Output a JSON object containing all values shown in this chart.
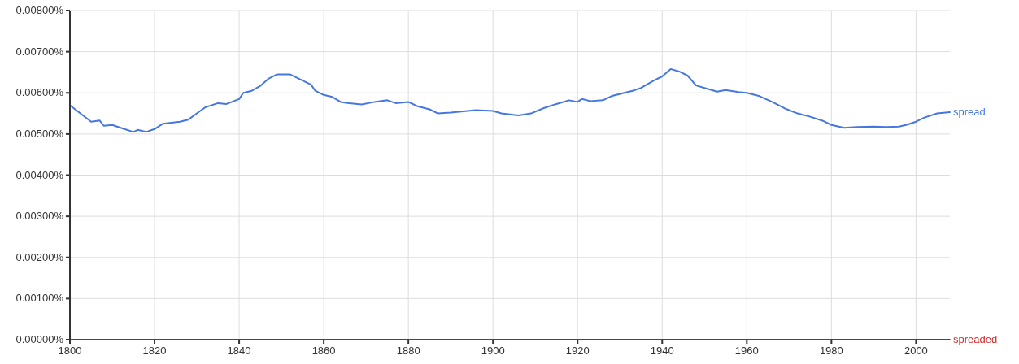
{
  "chart_data": {
    "type": "line",
    "xlim": [
      1800,
      2008
    ],
    "xticks": [
      1800,
      1820,
      1840,
      1860,
      1880,
      1900,
      1920,
      1940,
      1960,
      1980,
      2000
    ],
    "ylim": [
      0,
      0.008
    ],
    "yticks": [
      {
        "value": 0,
        "label": "0.00000%"
      },
      {
        "value": 0.001,
        "label": "0.00100%"
      },
      {
        "value": 0.002,
        "label": "0.00200%"
      },
      {
        "value": 0.003,
        "label": "0.00300%"
      },
      {
        "value": 0.004,
        "label": "0.00400%"
      },
      {
        "value": 0.005,
        "label": "0.00500%"
      },
      {
        "value": 0.006,
        "label": "0.00600%"
      },
      {
        "value": 0.007,
        "label": "0.00700%"
      },
      {
        "value": 0.008,
        "label": "0.00800%"
      }
    ],
    "grid": true,
    "series": [
      {
        "name": "spread",
        "color": "#4677e0",
        "x": [
          1800,
          1805,
          1807,
          1808,
          1810,
          1812,
          1815,
          1816,
          1818,
          1820,
          1822,
          1826,
          1828,
          1830,
          1832,
          1835,
          1837,
          1840,
          1841,
          1843,
          1845,
          1847,
          1849,
          1852,
          1855,
          1857,
          1858,
          1860,
          1862,
          1864,
          1866,
          1869,
          1872,
          1875,
          1877,
          1880,
          1882,
          1885,
          1887,
          1890,
          1893,
          1896,
          1900,
          1902,
          1906,
          1909,
          1912,
          1915,
          1918,
          1920,
          1921,
          1923,
          1926,
          1928,
          1931,
          1933,
          1935,
          1938,
          1940,
          1942,
          1944,
          1946,
          1948,
          1950,
          1953,
          1955,
          1958,
          1960,
          1963,
          1966,
          1969,
          1972,
          1975,
          1978,
          1980,
          1983,
          1986,
          1990,
          1993,
          1996,
          1998,
          2000,
          2002,
          2005,
          2008
        ],
        "values": [
          0.0057,
          0.0053,
          0.00533,
          0.0052,
          0.00522,
          0.00515,
          0.00505,
          0.0051,
          0.00505,
          0.00512,
          0.00525,
          0.0053,
          0.00535,
          0.0055,
          0.00565,
          0.00575,
          0.00573,
          0.00585,
          0.006,
          0.00605,
          0.00617,
          0.00635,
          0.00645,
          0.00645,
          0.0063,
          0.0062,
          0.00605,
          0.00595,
          0.0059,
          0.00578,
          0.00575,
          0.00572,
          0.00578,
          0.00582,
          0.00575,
          0.00578,
          0.00568,
          0.0056,
          0.0055,
          0.00552,
          0.00555,
          0.00558,
          0.00556,
          0.0055,
          0.00545,
          0.0055,
          0.00563,
          0.00573,
          0.00582,
          0.00578,
          0.00585,
          0.0058,
          0.00582,
          0.00592,
          0.006,
          0.00605,
          0.00612,
          0.0063,
          0.0064,
          0.00658,
          0.00652,
          0.00642,
          0.00618,
          0.00612,
          0.00603,
          0.00607,
          0.00602,
          0.006,
          0.00592,
          0.00578,
          0.00562,
          0.0055,
          0.00542,
          0.00532,
          0.00522,
          0.00515,
          0.00517,
          0.00518,
          0.00517,
          0.00518,
          0.00523,
          0.0053,
          0.0054,
          0.0055,
          0.00553
        ]
      },
      {
        "name": "spreaded",
        "color": "#d62b2b",
        "x": [
          1800,
          2008
        ],
        "values": [
          0,
          0
        ]
      }
    ]
  }
}
